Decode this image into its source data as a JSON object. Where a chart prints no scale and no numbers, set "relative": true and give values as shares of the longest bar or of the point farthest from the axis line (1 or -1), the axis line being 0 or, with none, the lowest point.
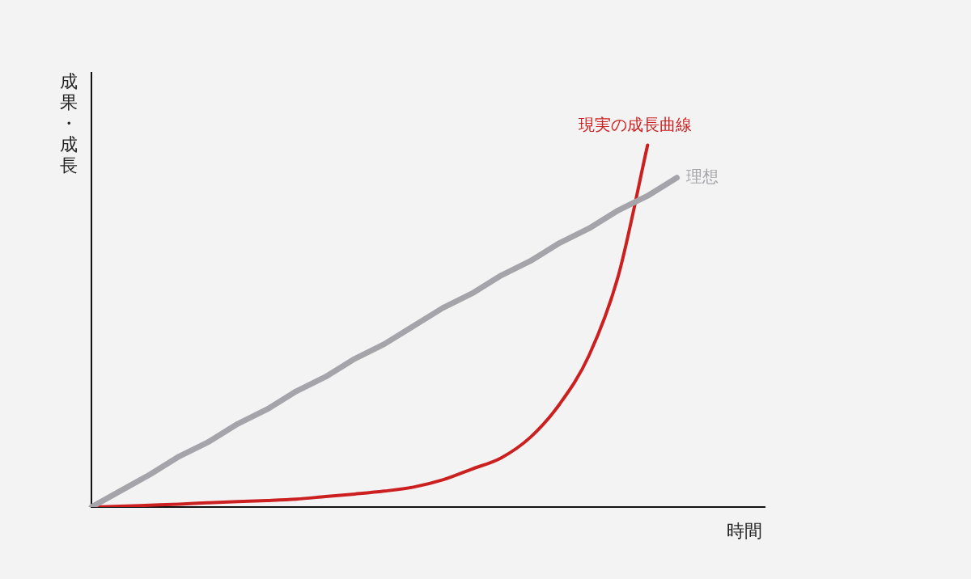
{
  "chart_data": {
    "type": "line",
    "relative": true,
    "xlabel": "時間",
    "ylabel": "成果・成長",
    "categories": [
      null,
      null,
      null,
      null,
      null,
      null,
      null,
      null,
      null,
      null,
      null,
      null,
      null,
      null,
      null,
      null,
      null,
      null,
      null,
      null,
      null,
      null,
      null,
      null
    ],
    "series": [
      {
        "name": "理想",
        "color": "#a5a4aa",
        "values": [
          0,
          0.045,
          0.09,
          0.14,
          0.18,
          0.23,
          0.27,
          0.32,
          0.36,
          0.41,
          0.45,
          0.5,
          0.55,
          0.59,
          0.64,
          0.68,
          0.73,
          0.77,
          0.82,
          0.86,
          0.91,
          null,
          null,
          null
        ]
      },
      {
        "name": "現実の成長曲線",
        "color": "#cc1f1f",
        "values": [
          0,
          0.002,
          0.005,
          0.008,
          0.012,
          0.015,
          0.018,
          0.022,
          0.029,
          0.036,
          0.044,
          0.055,
          0.075,
          0.105,
          0.136,
          0.193,
          0.285,
          0.419,
          0.639,
          1,
          null,
          null,
          null,
          null
        ]
      }
    ],
    "grid": false,
    "legend": false,
    "marker": "none"
  }
}
